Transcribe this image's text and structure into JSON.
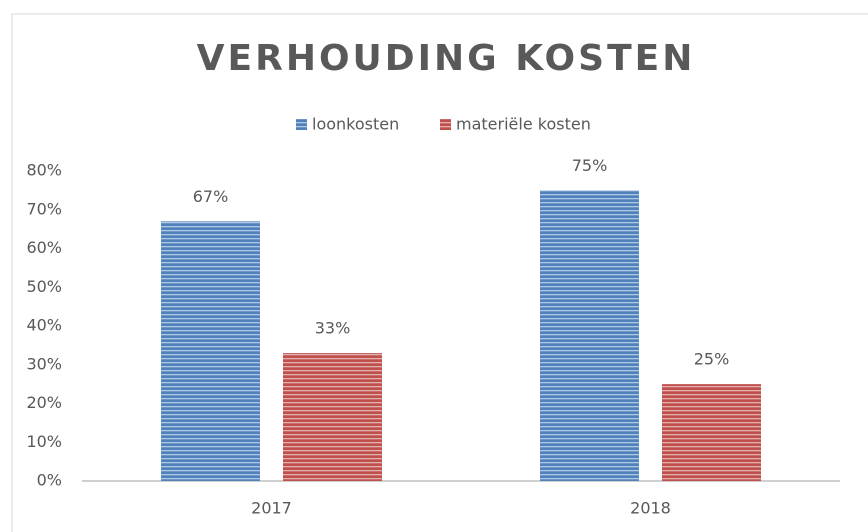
{
  "chart_data": {
    "type": "bar",
    "title": "VERHOUDING KOSTEN",
    "categories": [
      "2017",
      "2018"
    ],
    "series": [
      {
        "name": "loonkosten",
        "color": "#4f81bd",
        "values": [
          67,
          75
        ],
        "value_labels": [
          "67%",
          "75%"
        ]
      },
      {
        "name": "materiële kosten",
        "color": "#c0504d",
        "values": [
          33,
          25
        ],
        "value_labels": [
          "33%",
          "25%"
        ]
      }
    ],
    "ylim": [
      0,
      80
    ],
    "yticks": [
      {
        "value": 0,
        "label": "0%"
      },
      {
        "value": 10,
        "label": "10%"
      },
      {
        "value": 20,
        "label": "20%"
      },
      {
        "value": 30,
        "label": "30%"
      },
      {
        "value": 40,
        "label": "40%"
      },
      {
        "value": 50,
        "label": "50%"
      },
      {
        "value": 60,
        "label": "60%"
      },
      {
        "value": 70,
        "label": "70%"
      },
      {
        "value": 80,
        "label": "80%"
      }
    ],
    "legend": "top",
    "grid": false
  }
}
